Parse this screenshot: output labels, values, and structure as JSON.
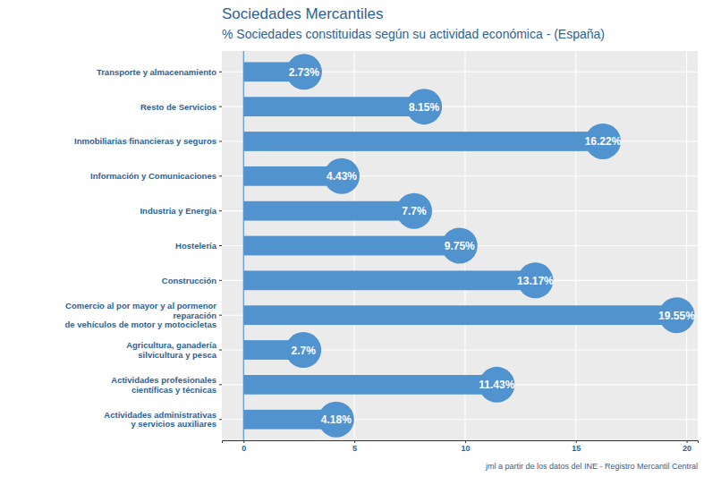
{
  "chart_data": {
    "type": "bar",
    "orientation": "horizontal",
    "title": "Sociedades Mercantiles",
    "subtitle": "% Sociedades constituidas según su actividad económica - (España)",
    "caption": "jml a partir de los datos del INE - Registro Mercantil Central",
    "categories": [
      "Transporte y almacenamiento",
      "Resto de Servicios",
      "Inmobiliarias financieras y seguros",
      "Información y Comunicaciones",
      "Industria y Energía",
      "Hostelería",
      "Construcción",
      "Comercio al por mayor y al pormenor\nreparación\nde vehículos de motor y motocicletas",
      "Agricultura, ganadería\nsilvicultura y pesca",
      "Actividades profesionales\ncientíficas y técnicas",
      "Actividades administrativas\ny servicios auxiliares"
    ],
    "values": [
      2.73,
      8.15,
      16.22,
      4.43,
      7.7,
      9.75,
      13.17,
      19.55,
      2.7,
      11.43,
      4.18
    ],
    "value_labels": [
      "2.73%",
      "8.15%",
      "16.22%",
      "4.43%",
      "7.7%",
      "9.75%",
      "13.17%",
      "19.55%",
      "2.7%",
      "11.43%",
      "4.18%"
    ],
    "data_labels": true,
    "color": "#5193cf",
    "xlim": [
      -0.98,
      20.5
    ],
    "xticks": [
      0,
      5,
      10,
      15,
      20
    ],
    "grid": true
  }
}
